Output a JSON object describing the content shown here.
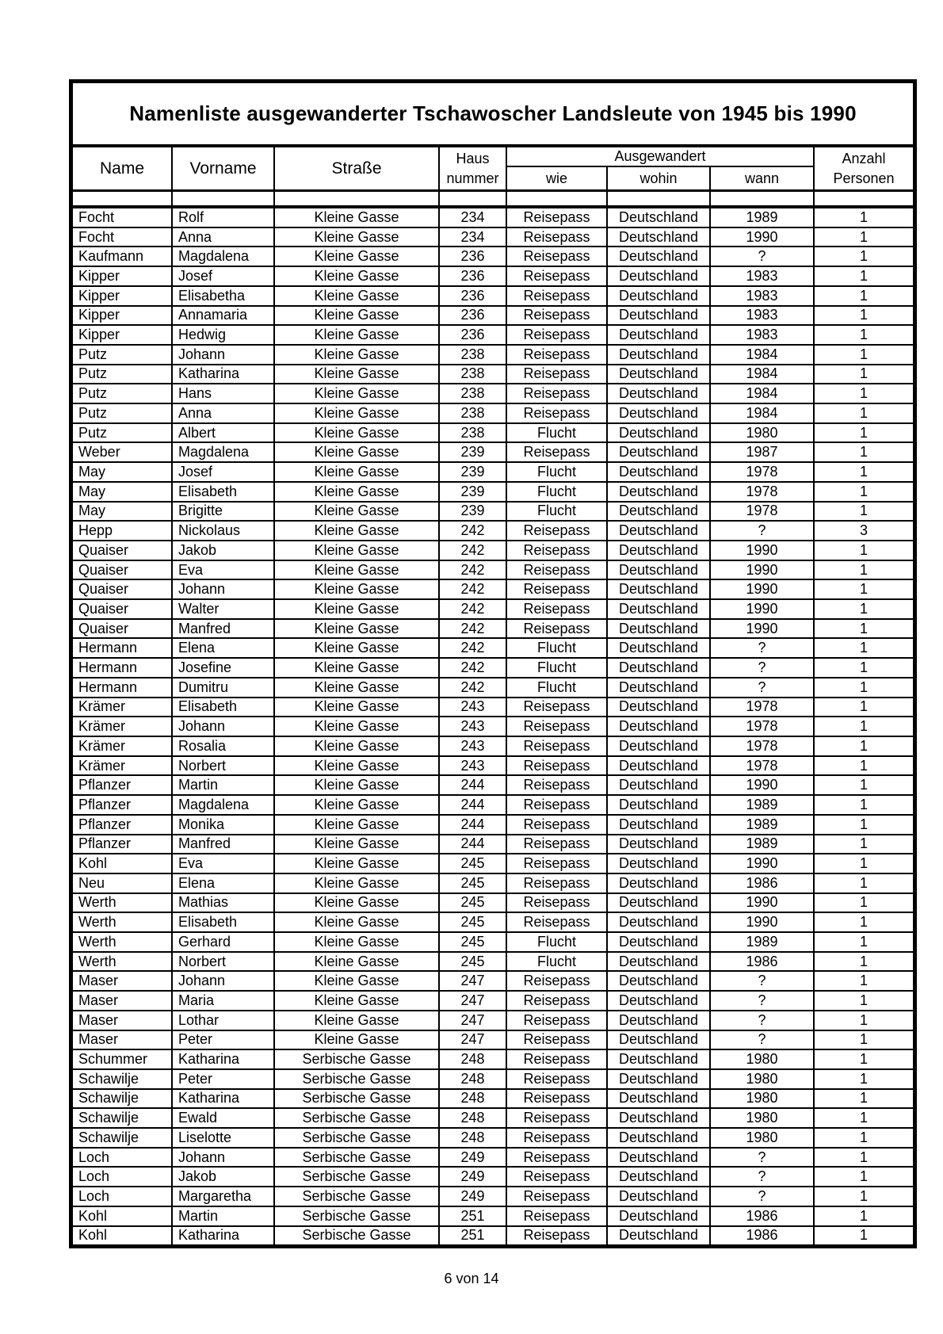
{
  "document": {
    "title": "Namenliste ausgewanderter Tschawoscher Landsleute von 1945 bis 1990",
    "page_indicator": "6 von 14"
  },
  "table": {
    "headers": {
      "name": "Name",
      "vorname": "Vorname",
      "strasse": "Straße",
      "hausnummer_line1": "Haus",
      "hausnummer_line2": "nummer",
      "ausgewandert": "Ausgewandert",
      "wie": "wie",
      "wohin": "wohin",
      "wann": "wann",
      "anzahl_line1": "Anzahl",
      "anzahl_line2": "Personen"
    },
    "row_fields": [
      "name",
      "vorname",
      "strasse",
      "hausnummer",
      "wie",
      "wohin",
      "wann",
      "anzahl_personen"
    ],
    "rows": [
      [
        "Focht",
        "Rolf",
        "Kleine Gasse",
        "234",
        "Reisepass",
        "Deutschland",
        "1989",
        "1"
      ],
      [
        "Focht",
        "Anna",
        "Kleine Gasse",
        "234",
        "Reisepass",
        "Deutschland",
        "1990",
        "1"
      ],
      [
        "Kaufmann",
        "Magdalena",
        "Kleine Gasse",
        "236",
        "Reisepass",
        "Deutschland",
        "?",
        "1"
      ],
      [
        "Kipper",
        "Josef",
        "Kleine Gasse",
        "236",
        "Reisepass",
        "Deutschland",
        "1983",
        "1"
      ],
      [
        "Kipper",
        "Elisabetha",
        "Kleine Gasse",
        "236",
        "Reisepass",
        "Deutschland",
        "1983",
        "1"
      ],
      [
        "Kipper",
        "Annamaria",
        "Kleine Gasse",
        "236",
        "Reisepass",
        "Deutschland",
        "1983",
        "1"
      ],
      [
        "Kipper",
        "Hedwig",
        "Kleine Gasse",
        "236",
        "Reisepass",
        "Deutschland",
        "1983",
        "1"
      ],
      [
        "Putz",
        "Johann",
        "Kleine Gasse",
        "238",
        "Reisepass",
        "Deutschland",
        "1984",
        "1"
      ],
      [
        "Putz",
        "Katharina",
        "Kleine Gasse",
        "238",
        "Reisepass",
        "Deutschland",
        "1984",
        "1"
      ],
      [
        "Putz",
        "Hans",
        "Kleine Gasse",
        "238",
        "Reisepass",
        "Deutschland",
        "1984",
        "1"
      ],
      [
        "Putz",
        "Anna",
        "Kleine Gasse",
        "238",
        "Reisepass",
        "Deutschland",
        "1984",
        "1"
      ],
      [
        "Putz",
        "Albert",
        "Kleine Gasse",
        "238",
        "Flucht",
        "Deutschland",
        "1980",
        "1"
      ],
      [
        "Weber",
        "Magdalena",
        "Kleine Gasse",
        "239",
        "Reisepass",
        "Deutschland",
        "1987",
        "1"
      ],
      [
        "May",
        "Josef",
        "Kleine Gasse",
        "239",
        "Flucht",
        "Deutschland",
        "1978",
        "1"
      ],
      [
        "May",
        "Elisabeth",
        "Kleine Gasse",
        "239",
        "Flucht",
        "Deutschland",
        "1978",
        "1"
      ],
      [
        "May",
        "Brigitte",
        "Kleine Gasse",
        "239",
        "Flucht",
        "Deutschland",
        "1978",
        "1"
      ],
      [
        "Hepp",
        "Nickolaus",
        "Kleine Gasse",
        "242",
        "Reisepass",
        "Deutschland",
        "?",
        "3"
      ],
      [
        "Quaiser",
        "Jakob",
        "Kleine Gasse",
        "242",
        "Reisepass",
        "Deutschland",
        "1990",
        "1"
      ],
      [
        "Quaiser",
        "Eva",
        "Kleine Gasse",
        "242",
        "Reisepass",
        "Deutschland",
        "1990",
        "1"
      ],
      [
        "Quaiser",
        "Johann",
        "Kleine Gasse",
        "242",
        "Reisepass",
        "Deutschland",
        "1990",
        "1"
      ],
      [
        "Quaiser",
        "Walter",
        "Kleine Gasse",
        "242",
        "Reisepass",
        "Deutschland",
        "1990",
        "1"
      ],
      [
        "Quaiser",
        "Manfred",
        "Kleine Gasse",
        "242",
        "Reisepass",
        "Deutschland",
        "1990",
        "1"
      ],
      [
        "Hermann",
        "Elena",
        "Kleine Gasse",
        "242",
        "Flucht",
        "Deutschland",
        "?",
        "1"
      ],
      [
        "Hermann",
        "Josefine",
        "Kleine Gasse",
        "242",
        "Flucht",
        "Deutschland",
        "?",
        "1"
      ],
      [
        "Hermann",
        "Dumitru",
        "Kleine Gasse",
        "242",
        "Flucht",
        "Deutschland",
        "?",
        "1"
      ],
      [
        "Krämer",
        "Elisabeth",
        "Kleine Gasse",
        "243",
        "Reisepass",
        "Deutschland",
        "1978",
        "1"
      ],
      [
        "Krämer",
        "Johann",
        "Kleine Gasse",
        "243",
        "Reisepass",
        "Deutschland",
        "1978",
        "1"
      ],
      [
        "Krämer",
        "Rosalia",
        "Kleine Gasse",
        "243",
        "Reisepass",
        "Deutschland",
        "1978",
        "1"
      ],
      [
        "Krämer",
        "Norbert",
        "Kleine Gasse",
        "243",
        "Reisepass",
        "Deutschland",
        "1978",
        "1"
      ],
      [
        "Pflanzer",
        "Martin",
        "Kleine Gasse",
        "244",
        "Reisepass",
        "Deutschland",
        "1990",
        "1"
      ],
      [
        "Pflanzer",
        "Magdalena",
        "Kleine Gasse",
        "244",
        "Reisepass",
        "Deutschland",
        "1989",
        "1"
      ],
      [
        "Pflanzer",
        "Monika",
        "Kleine Gasse",
        "244",
        "Reisepass",
        "Deutschland",
        "1989",
        "1"
      ],
      [
        "Pflanzer",
        "Manfred",
        "Kleine Gasse",
        "244",
        "Reisepass",
        "Deutschland",
        "1989",
        "1"
      ],
      [
        "Kohl",
        "Eva",
        "Kleine Gasse",
        "245",
        "Reisepass",
        "Deutschland",
        "1990",
        "1"
      ],
      [
        "Neu",
        "Elena",
        "Kleine Gasse",
        "245",
        "Reisepass",
        "Deutschland",
        "1986",
        "1"
      ],
      [
        "Werth",
        "Mathias",
        "Kleine Gasse",
        "245",
        "Reisepass",
        "Deutschland",
        "1990",
        "1"
      ],
      [
        "Werth",
        "Elisabeth",
        "Kleine Gasse",
        "245",
        "Reisepass",
        "Deutschland",
        "1990",
        "1"
      ],
      [
        "Werth",
        "Gerhard",
        "Kleine Gasse",
        "245",
        "Flucht",
        "Deutschland",
        "1989",
        "1"
      ],
      [
        "Werth",
        "Norbert",
        "Kleine Gasse",
        "245",
        "Flucht",
        "Deutschland",
        "1986",
        "1"
      ],
      [
        "Maser",
        "Johann",
        "Kleine Gasse",
        "247",
        "Reisepass",
        "Deutschland",
        "?",
        "1"
      ],
      [
        "Maser",
        "Maria",
        "Kleine Gasse",
        "247",
        "Reisepass",
        "Deutschland",
        "?",
        "1"
      ],
      [
        "Maser",
        "Lothar",
        "Kleine Gasse",
        "247",
        "Reisepass",
        "Deutschland",
        "?",
        "1"
      ],
      [
        "Maser",
        "Peter",
        "Kleine Gasse",
        "247",
        "Reisepass",
        "Deutschland",
        "?",
        "1"
      ],
      [
        "Schummer",
        "Katharina",
        "Serbische Gasse",
        "248",
        "Reisepass",
        "Deutschland",
        "1980",
        "1"
      ],
      [
        "Schawilje",
        "Peter",
        "Serbische Gasse",
        "248",
        "Reisepass",
        "Deutschland",
        "1980",
        "1"
      ],
      [
        "Schawilje",
        "Katharina",
        "Serbische Gasse",
        "248",
        "Reisepass",
        "Deutschland",
        "1980",
        "1"
      ],
      [
        "Schawilje",
        "Ewald",
        "Serbische Gasse",
        "248",
        "Reisepass",
        "Deutschland",
        "1980",
        "1"
      ],
      [
        "Schawilje",
        "Liselotte",
        "Serbische Gasse",
        "248",
        "Reisepass",
        "Deutschland",
        "1980",
        "1"
      ],
      [
        "Loch",
        "Johann",
        "Serbische Gasse",
        "249",
        "Reisepass",
        "Deutschland",
        "?",
        "1"
      ],
      [
        "Loch",
        "Jakob",
        "Serbische Gasse",
        "249",
        "Reisepass",
        "Deutschland",
        "?",
        "1"
      ],
      [
        "Loch",
        "Margaretha",
        "Serbische Gasse",
        "249",
        "Reisepass",
        "Deutschland",
        "?",
        "1"
      ],
      [
        "Kohl",
        "Martin",
        "Serbische Gasse",
        "251",
        "Reisepass",
        "Deutschland",
        "1986",
        "1"
      ],
      [
        "Kohl",
        "Katharina",
        "Serbische Gasse",
        "251",
        "Reisepass",
        "Deutschland",
        "1986",
        "1"
      ]
    ]
  },
  "colors": {
    "ink": "#000000",
    "paper": "#ffffff"
  }
}
